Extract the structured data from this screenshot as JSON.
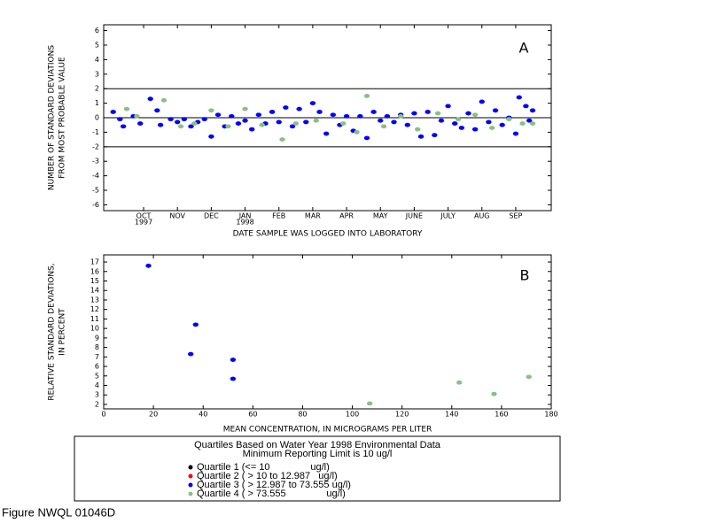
{
  "chart_data": [
    {
      "type": "scatter",
      "panel": "A",
      "ylabel": [
        "NUMBER OF STANDARD DEVIATIONS",
        "FROM MOST PROBABLE VALUE"
      ],
      "xlabel": "DATE SAMPLE WAS LOGGED INTO LABORATORY",
      "xlim": [
        -1.18,
        12.05
      ],
      "ylim": [
        -6.4,
        6.4
      ],
      "xticks": [
        {
          "value": 0,
          "label": "OCT"
        },
        {
          "value": 1,
          "label": "NOV"
        },
        {
          "value": 2,
          "label": "DEC"
        },
        {
          "value": 3,
          "label": "JAN"
        },
        {
          "value": 4,
          "label": "FEB"
        },
        {
          "value": 5,
          "label": "MAR"
        },
        {
          "value": 6,
          "label": "APR"
        },
        {
          "value": 7,
          "label": "MAY"
        },
        {
          "value": 8,
          "label": "JUNE"
        },
        {
          "value": 9,
          "label": "JULY"
        },
        {
          "value": 10,
          "label": "AUG"
        },
        {
          "value": 11,
          "label": "SEP"
        }
      ],
      "year_labels": [
        {
          "value": 0,
          "label": "1997"
        },
        {
          "value": 3,
          "label": "1998"
        }
      ],
      "yticks": [
        -6,
        -5,
        -4,
        -3,
        -2,
        -1,
        0,
        1,
        2,
        3,
        4,
        5,
        6
      ],
      "hlines": [
        -2,
        0,
        2
      ],
      "series": [
        {
          "color": "#0000ff",
          "x": [
            -0.9,
            -0.7,
            -0.6,
            -0.3,
            -0.1,
            0.2,
            0.4,
            0.5,
            0.8,
            1.0,
            1.2,
            1.4,
            1.6,
            1.8,
            2.0,
            2.2,
            2.4,
            2.6,
            2.8,
            3.0,
            3.2,
            3.4,
            3.6,
            3.8,
            4.0,
            4.2,
            4.4,
            4.6,
            4.8,
            5.0,
            5.2,
            5.4,
            5.6,
            5.8,
            6.0,
            6.2,
            6.4,
            6.6,
            6.8,
            7.0,
            7.2,
            7.4,
            7.6,
            7.8,
            8.0,
            8.2,
            8.4,
            8.6,
            8.8,
            9.0,
            9.2,
            9.4,
            9.6,
            9.8,
            10.0,
            10.2,
            10.4,
            10.6,
            10.8,
            11.0,
            11.1,
            11.3,
            11.4,
            11.5
          ],
          "values": [
            0.4,
            -0.1,
            -0.6,
            0.1,
            -0.4,
            1.3,
            0.5,
            -0.5,
            -0.1,
            -0.3,
            -0.1,
            -0.6,
            -0.3,
            -0.1,
            -1.3,
            0.2,
            -0.6,
            0.1,
            -0.4,
            -0.2,
            -0.8,
            0.2,
            -0.4,
            0.4,
            -0.3,
            0.7,
            -0.6,
            0.6,
            -0.3,
            1.0,
            0.4,
            -1.1,
            0.2,
            -0.5,
            0.1,
            -0.9,
            0.1,
            -1.4,
            0.4,
            -0.2,
            0.1,
            -0.3,
            0.2,
            -0.5,
            0.3,
            -1.3,
            0.4,
            -1.2,
            -0.2,
            0.8,
            -0.4,
            -0.7,
            0.3,
            -0.8,
            1.1,
            -0.3,
            0.5,
            -0.5,
            0.0,
            -1.1,
            1.4,
            0.8,
            -0.2,
            0.5
          ]
        },
        {
          "color": "#88c088",
          "x": [
            -0.5,
            -0.2,
            0.6,
            1.1,
            1.5,
            2.0,
            2.5,
            3.0,
            3.5,
            4.1,
            4.5,
            5.1,
            5.9,
            6.3,
            6.6,
            7.1,
            7.6,
            8.1,
            8.7,
            9.3,
            9.8,
            10.3,
            10.8,
            11.2,
            11.5
          ],
          "values": [
            0.6,
            0.1,
            1.2,
            -0.6,
            -0.4,
            0.5,
            -0.6,
            0.6,
            -0.5,
            -1.5,
            -0.4,
            -0.2,
            -0.4,
            -1.0,
            1.5,
            -0.6,
            0.1,
            -0.8,
            0.3,
            -0.1,
            0.2,
            -0.7,
            -0.1,
            -0.4,
            -0.4
          ]
        }
      ]
    },
    {
      "type": "scatter",
      "panel": "B",
      "ylabel": [
        "RELATIVE STANDARD DEVIATIONS,",
        "IN PERCENT"
      ],
      "xlabel": "MEAN CONCENTRATION, IN MICROGRAMS PER LITER",
      "xlim": [
        0,
        180
      ],
      "ylim": [
        1.53,
        17.75
      ],
      "xticks": [
        0,
        20,
        40,
        60,
        80,
        100,
        120,
        140,
        160,
        180
      ],
      "yticks": [
        2,
        3,
        4,
        5,
        6,
        7,
        8,
        9,
        10,
        11,
        12,
        13,
        14,
        15,
        16,
        17
      ],
      "series": [
        {
          "color": "#0000ff",
          "x": [
            18,
            35,
            37,
            52,
            52
          ],
          "values": [
            16.6,
            7.3,
            10.4,
            6.7,
            4.7
          ]
        },
        {
          "color": "#88c088",
          "x": [
            107,
            143,
            157,
            171
          ],
          "values": [
            2.1,
            4.3,
            3.1,
            4.9
          ]
        }
      ]
    }
  ],
  "legend": {
    "title": [
      "Quartiles Based on Water Year 1998 Environmental Data",
      "Minimum Reporting Limit is 10 ug/l"
    ],
    "items": [
      {
        "name": "Quartile 1 (<= 10               ug/l)",
        "color": "#000000"
      },
      {
        "name": "Quartile 2 ( > 10 to 12.987   ug/l)",
        "color": "#ff0000"
      },
      {
        "name": "Quartile 3 ( > 12.987 to 73.555 ug/l)",
        "color": "#0000ff"
      },
      {
        "name": "Quartile 4 ( > 73.555               ug/l)",
        "color": "#88c088"
      }
    ]
  },
  "caption": "Figure NWQL 01046D"
}
